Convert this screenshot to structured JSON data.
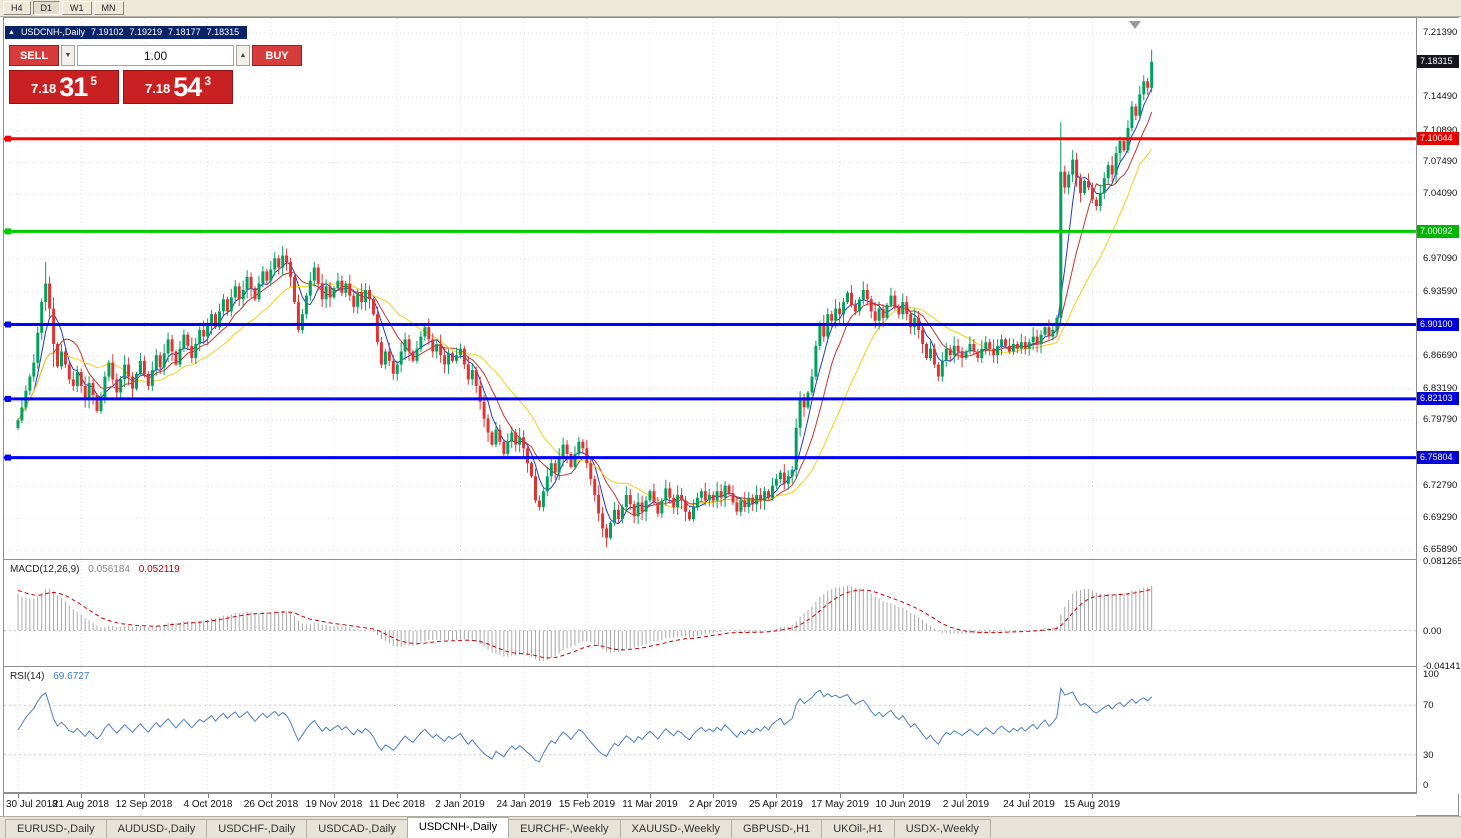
{
  "window": {
    "timeframe_buttons": [
      "H4",
      "D1",
      "W1",
      "MN"
    ],
    "active_timeframe": "D1"
  },
  "chart": {
    "collapse_arrow": "▲",
    "title": "USDCNH-,Daily",
    "ohlc": {
      "open": "7.19102",
      "high": "7.19219",
      "low": "7.18177",
      "close": "7.18315"
    },
    "trade_panel": {
      "sell_label": "SELL",
      "buy_label": "BUY",
      "volume": "1.00",
      "spin_down": "▼",
      "spin_up": "▲",
      "sell_price": {
        "head": "7.18",
        "big": "31",
        "sup": "5"
      },
      "buy_price": {
        "head": "7.18",
        "big": "54",
        "sup": "3"
      }
    },
    "price_axis_labels": [
      {
        "text": "7.21390",
        "price": 7.2139
      },
      {
        "text": "7.14490",
        "price": 7.1449
      },
      {
        "text": "7.10890",
        "price": 7.1089
      },
      {
        "text": "7.07490",
        "price": 7.0749
      },
      {
        "text": "7.04090",
        "price": 7.0409
      },
      {
        "text": "6.97090",
        "price": 6.9709
      },
      {
        "text": "6.93590",
        "price": 6.9359
      },
      {
        "text": "6.86690",
        "price": 6.8669
      },
      {
        "text": "6.83190",
        "price": 6.8319
      },
      {
        "text": "6.79790",
        "price": 6.7979
      },
      {
        "text": "6.72790",
        "price": 6.7279
      },
      {
        "text": "6.69290",
        "price": 6.6929
      },
      {
        "text": "6.65890",
        "price": 6.6589
      }
    ],
    "price_tags": [
      {
        "text": "7.18315",
        "price": 7.18315,
        "bg": "#15151f"
      },
      {
        "text": "7.10044",
        "price": 7.10044,
        "bg": "#e60000"
      },
      {
        "text": "7.00092",
        "price": 7.00092,
        "bg": "#00b400"
      },
      {
        "text": "6.90100",
        "price": 6.901,
        "bg": "#0000d8"
      },
      {
        "text": "6.82103",
        "price": 6.82103,
        "bg": "#0000d8"
      },
      {
        "text": "6.75804",
        "price": 6.75804,
        "bg": "#0000d8"
      }
    ],
    "hlines": [
      {
        "price": 7.10044,
        "color": "#ff0000"
      },
      {
        "price": 7.00092,
        "color": "#00cc00"
      },
      {
        "price": 6.901,
        "color": "#0000ff"
      },
      {
        "price": 6.82103,
        "color": "#0000ff"
      },
      {
        "price": 6.75804,
        "color": "#0000ff"
      }
    ],
    "dates": [
      "30 Jul 2018",
      "21 Aug 2018",
      "12 Sep 2018",
      "4 Oct 2018",
      "26 Oct 2018",
      "19 Nov 2018",
      "11 Dec 2018",
      "2 Jan 2019",
      "24 Jan 2019",
      "15 Feb 2019",
      "11 Mar 2019",
      "2 Apr 2019",
      "25 Apr 2019",
      "17 May 2019",
      "10 Jun 2019",
      "2 Jul 2019",
      "24 Jul 2019",
      "15 Aug 2019"
    ]
  },
  "chart_data": {
    "type": "candlestick",
    "symbol": "USDCNH-",
    "timeframe": "Daily",
    "y_range": [
      6.6492,
      7.23
    ],
    "first_open": 6.79,
    "closes": [
      6.798,
      6.812,
      6.83,
      6.845,
      6.86,
      6.892,
      6.925,
      6.945,
      6.918,
      6.88,
      6.856,
      6.872,
      6.858,
      6.842,
      6.835,
      6.85,
      6.835,
      6.82,
      6.838,
      6.825,
      6.808,
      6.82,
      6.845,
      6.86,
      6.842,
      6.828,
      6.842,
      6.858,
      6.845,
      6.832,
      6.848,
      6.862,
      6.848,
      6.835,
      6.852,
      6.868,
      6.855,
      6.87,
      6.885,
      6.872,
      6.858,
      6.875,
      6.89,
      6.878,
      6.865,
      6.88,
      6.895,
      6.888,
      6.9,
      6.912,
      6.898,
      6.915,
      6.928,
      6.915,
      6.93,
      6.942,
      6.928,
      6.938,
      6.952,
      6.94,
      6.928,
      6.945,
      6.958,
      6.948,
      6.96,
      6.972,
      6.962,
      6.975,
      6.968,
      6.952,
      6.925,
      6.895,
      6.912,
      6.932,
      6.948,
      6.962,
      6.945,
      6.928,
      6.942,
      6.93,
      6.94,
      6.948,
      6.935,
      6.945,
      6.932,
      6.92,
      6.935,
      6.925,
      6.938,
      6.928,
      6.912,
      6.882,
      6.858,
      6.872,
      6.862,
      6.848,
      6.858,
      6.872,
      6.885,
      6.872,
      6.862,
      6.875,
      6.888,
      6.898,
      6.885,
      6.872,
      6.88,
      6.868,
      6.858,
      6.87,
      6.862,
      6.868,
      6.875,
      6.858,
      6.842,
      6.852,
      6.835,
      6.818,
      6.8,
      6.785,
      6.772,
      6.788,
      6.775,
      6.762,
      6.775,
      6.785,
      6.772,
      6.78,
      6.768,
      6.752,
      6.738,
      6.712,
      6.705,
      6.722,
      6.738,
      6.752,
      6.742,
      6.758,
      6.772,
      6.762,
      6.748,
      6.762,
      6.775,
      6.768,
      6.752,
      6.735,
      6.718,
      6.698,
      6.682,
      6.672,
      6.688,
      6.702,
      6.692,
      6.705,
      6.718,
      6.708,
      6.695,
      6.71,
      6.7,
      6.712,
      6.722,
      6.71,
      6.698,
      6.712,
      6.725,
      6.715,
      6.705,
      6.718,
      6.712,
      6.7,
      6.692,
      6.705,
      6.715,
      6.722,
      6.712,
      6.718,
      6.712,
      6.722,
      6.715,
      6.728,
      6.72,
      6.71,
      6.7,
      6.712,
      6.705,
      6.715,
      6.708,
      6.718,
      6.712,
      6.722,
      6.715,
      6.728,
      6.735,
      6.742,
      6.73,
      6.738,
      6.745,
      6.79,
      6.822,
      6.812,
      6.828,
      6.845,
      6.878,
      6.902,
      6.888,
      6.912,
      6.905,
      6.918,
      6.912,
      6.925,
      6.935,
      6.922,
      6.915,
      6.928,
      6.938,
      6.928,
      6.915,
      6.905,
      6.918,
      6.908,
      6.922,
      6.932,
      6.92,
      6.912,
      6.925,
      6.912,
      6.898,
      6.908,
      6.895,
      6.88,
      6.865,
      6.875,
      6.858,
      6.845,
      6.862,
      6.875,
      6.868,
      6.878,
      6.872,
      6.865,
      6.872,
      6.88,
      6.872,
      6.865,
      6.875,
      6.882,
      6.875,
      6.868,
      6.878,
      6.885,
      6.878,
      6.872,
      6.88,
      6.875,
      6.882,
      6.875,
      6.882,
      6.888,
      6.88,
      6.89,
      6.898,
      6.888,
      6.895,
      6.908,
      7.065,
      7.048,
      7.062,
      7.078,
      7.058,
      7.042,
      7.055,
      7.048,
      7.035,
      7.028,
      7.042,
      7.058,
      7.072,
      7.062,
      7.085,
      7.098,
      7.088,
      7.112,
      7.135,
      7.125,
      7.148,
      7.162,
      7.155,
      7.183
    ],
    "wick_overrides": {
      "7": [
        6.968,
        6.915
      ],
      "9": [
        6.93,
        6.855
      ],
      "264": [
        7.118,
        6.9
      ],
      "287": [
        7.196,
        7.15
      ]
    },
    "moving_averages": [
      {
        "period": 5,
        "color": "#2438c8"
      },
      {
        "period": 10,
        "color": "#c83232"
      },
      {
        "period": 21,
        "color": "#f0d018"
      }
    ],
    "indicators": {
      "macd": {
        "label": "MACD(12,26,9)",
        "value_main": "0.056184",
        "value_signal": "0.052119",
        "axis_labels": [
          {
            "text": "0.081265",
            "value": 0.081265
          },
          {
            "text": "0.00",
            "value": 0
          },
          {
            "text": "-0.041413",
            "value": -0.041413
          }
        ],
        "range": [
          -0.0414,
          0.0813
        ]
      },
      "rsi": {
        "label": "RSI(14)",
        "value": "69.6727",
        "axis_labels": [
          {
            "text": "100",
            "value": 100
          },
          {
            "text": "70",
            "value": 70
          },
          {
            "text": "30",
            "value": 30
          },
          {
            "text": "0",
            "value": 0
          }
        ],
        "levels": [
          70,
          30
        ],
        "range": [
          0,
          100
        ]
      }
    }
  },
  "tabs": [
    {
      "label": "EURUSD-,Daily",
      "active": false
    },
    {
      "label": "AUDUSD-,Daily",
      "active": false
    },
    {
      "label": "USDCHF-,Daily",
      "active": false
    },
    {
      "label": "USDCAD-,Daily",
      "active": false
    },
    {
      "label": "USDCNH-,Daily",
      "active": true
    },
    {
      "label": "EURCHF-,Weekly",
      "active": false
    },
    {
      "label": "XAUUSD-,Weekly",
      "active": false
    },
    {
      "label": "GBPUSD-,H1",
      "active": false
    },
    {
      "label": "UKOil-,H1",
      "active": false
    },
    {
      "label": "USDX-,Weekly",
      "active": false
    }
  ],
  "colors": {
    "bull": "#00a15f",
    "bear": "#e03434",
    "macd_hist": "#a8a8a8",
    "macd_signal": "#cc0000",
    "rsi_line": "#4a80c0",
    "grid": "#dcdcdc",
    "trade_red": "#c92121"
  }
}
